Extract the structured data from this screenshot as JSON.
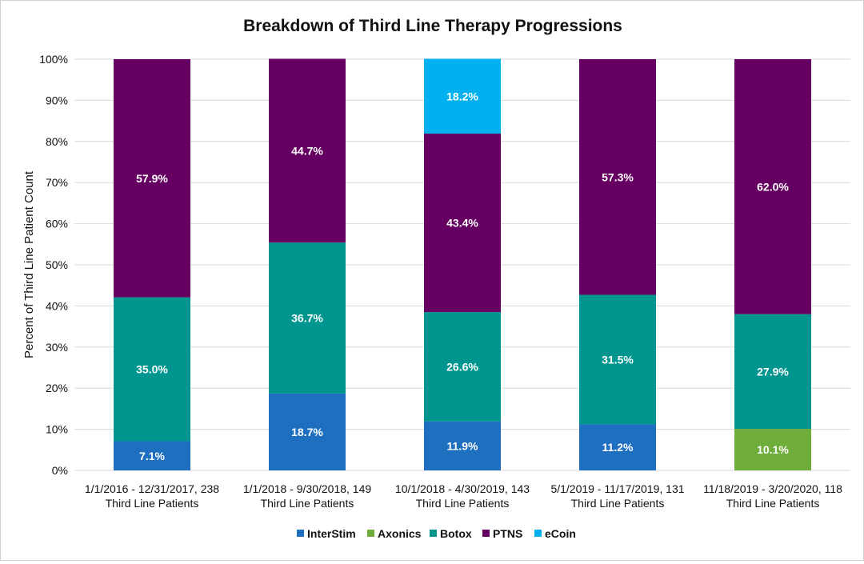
{
  "chart_data": {
    "type": "bar",
    "stacked": true,
    "title": "Breakdown of Third Line Therapy Progressions",
    "xlabel": "",
    "ylabel": "Percent of Third Line Patient Count",
    "ylim": [
      0,
      100
    ],
    "y_ticks": [
      "0%",
      "10%",
      "20%",
      "30%",
      "40%",
      "50%",
      "60%",
      "70%",
      "80%",
      "90%",
      "100%"
    ],
    "grid": true,
    "legend_position": "bottom",
    "categories": [
      [
        "1/1/2016 - 12/31/2017, 238",
        "Third Line Patients"
      ],
      [
        "1/1/2018 - 9/30/2018, 149",
        "Third Line Patients"
      ],
      [
        "10/1/2018 - 4/30/2019, 143",
        "Third Line Patients"
      ],
      [
        "5/1/2019 - 11/17/2019, 131",
        "Third Line Patients"
      ],
      [
        "11/18/2019 - 3/20/2020, 118",
        "Third Line Patients"
      ]
    ],
    "series": [
      {
        "name": "InterStim",
        "color": "#1f6fc1",
        "values": [
          7.1,
          18.7,
          11.9,
          11.2,
          0
        ],
        "labels": [
          "7.1%",
          "18.7%",
          "11.9%",
          "11.2%",
          ""
        ]
      },
      {
        "name": "Axonics",
        "color": "#6fad3a",
        "values": [
          0,
          0,
          0,
          0,
          10.1
        ],
        "labels": [
          "",
          "",
          "",
          "",
          "10.1%"
        ]
      },
      {
        "name": "Botox",
        "color": "#00968f",
        "values": [
          35.0,
          36.7,
          26.6,
          31.5,
          27.9
        ],
        "labels": [
          "35.0%",
          "36.7%",
          "26.6%",
          "31.5%",
          "27.9%"
        ]
      },
      {
        "name": "PTNS",
        "color": "#650062",
        "values": [
          57.9,
          44.7,
          43.4,
          57.3,
          62.0
        ],
        "labels": [
          "57.9%",
          "44.7%",
          "43.4%",
          "57.3%",
          "62.0%"
        ]
      },
      {
        "name": "eCoin",
        "color": "#00b0ef",
        "values": [
          0,
          0,
          18.2,
          0,
          0
        ],
        "labels": [
          "",
          "",
          "18.2%",
          "",
          ""
        ]
      }
    ]
  }
}
